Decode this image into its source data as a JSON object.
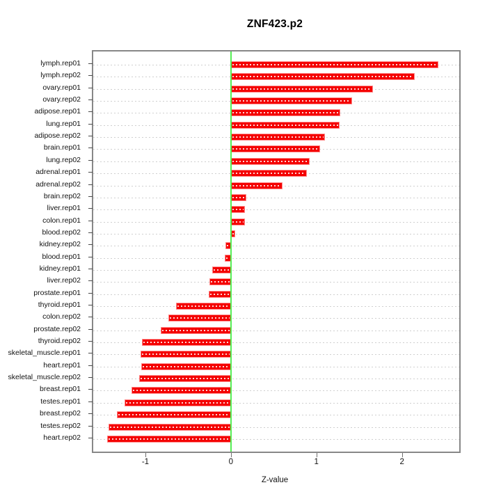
{
  "chart_data": {
    "type": "bar",
    "orientation": "horizontal",
    "title": "ZNF423.p2",
    "xlabel": "Z-value",
    "ylabel": "",
    "categories": [
      "lymph.rep01",
      "lymph.rep02",
      "ovary.rep01",
      "ovary.rep02",
      "adipose.rep01",
      "lung.rep01",
      "adipose.rep02",
      "brain.rep01",
      "lung.rep02",
      "adrenal.rep01",
      "adrenal.rep02",
      "brain.rep02",
      "liver.rep01",
      "colon.rep01",
      "blood.rep02",
      "kidney.rep02",
      "blood.rep01",
      "kidney.rep01",
      "liver.rep02",
      "prostate.rep01",
      "thyroid.rep01",
      "colon.rep02",
      "prostate.rep02",
      "thyroid.rep02",
      "skeletal_muscle.rep01",
      "heart.rep01",
      "skeletal_muscle.rep02",
      "breast.rep01",
      "testes.rep01",
      "breast.rep02",
      "testes.rep02",
      "heart.rep02"
    ],
    "values": [
      2.43,
      2.15,
      1.66,
      1.42,
      1.28,
      1.27,
      1.1,
      1.04,
      0.92,
      0.89,
      0.6,
      0.18,
      0.16,
      0.16,
      0.05,
      -0.06,
      -0.07,
      -0.22,
      -0.25,
      -0.26,
      -0.64,
      -0.73,
      -0.82,
      -1.04,
      -1.06,
      -1.05,
      -1.07,
      -1.16,
      -1.24,
      -1.33,
      -1.43,
      -1.45
    ],
    "x_ticks": [
      -1,
      0,
      1,
      2
    ],
    "x_tick_labels": [
      "-1",
      "0",
      "1",
      "2"
    ],
    "xlim": [
      -1.61,
      2.67
    ],
    "grid": "horizontal-dotted",
    "zero_line": true,
    "colors": {
      "bar_fill": "#f40000",
      "bar_edge": "#ff8a8a",
      "bar_inner_dash": "#ffffff",
      "zero_line": "#55ee55",
      "grid": "#cfcfcf",
      "plot_border": "#878787",
      "background": "#ffffff"
    }
  }
}
